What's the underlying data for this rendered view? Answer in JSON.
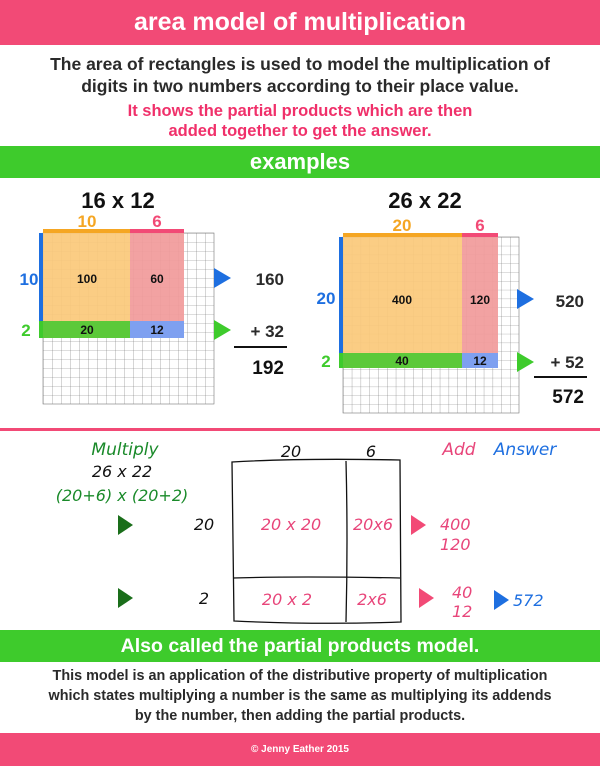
{
  "title": "area model of multiplication",
  "intro": {
    "line1": "The area of rectangles is used to model the multiplication of",
    "line2": "digits in two numbers according to their place value.",
    "pink1": "It shows the partial products which are then",
    "pink2": "added together to get the answer."
  },
  "examples_banner": "examples",
  "example1": {
    "title": "16 x 12",
    "top_tens": "10",
    "top_ones": "6",
    "side_tens": "10",
    "side_ones": "2",
    "cell_tt": "100",
    "cell_to": "60",
    "cell_ot": "20",
    "cell_oo": "12",
    "sum1": "160",
    "sum2": "+ 32",
    "total": "192"
  },
  "example2": {
    "title": "26 x 22",
    "top_tens": "20",
    "top_ones": "6",
    "side_tens": "20",
    "side_ones": "2",
    "cell_tt": "400",
    "cell_to": "120",
    "cell_ot": "40",
    "cell_oo": "12",
    "sum1": "520",
    "sum2": "+ 52",
    "total": "572"
  },
  "worked": {
    "multiply_label": "Multiply",
    "problem": "26 x 22",
    "expanded": "(20+6) x (20+2)",
    "col1": "20",
    "col2": "6",
    "row1": "20",
    "row2": "2",
    "c11": "20 x 20",
    "c12": "20x6",
    "c21": "20 x 2",
    "c22": "2x6",
    "add_label": "Add",
    "answer_label": "Answer",
    "add1a": "400",
    "add1b": "120",
    "add2a": "40",
    "add2b": "12",
    "answer": "572"
  },
  "also_banner": "Also called the partial products model.",
  "footer_text": {
    "l1": "This model is an application of the distributive property of multiplication",
    "l2": "which states multiplying a number is the same as multiplying its addends",
    "l3": "by the number, then adding the partial products."
  },
  "copyright": "© Jenny Eather 2015",
  "colors": {
    "pink": "#f24a76",
    "green": "#3ecb2c",
    "orange": "#f5a623",
    "blue": "#1e6fe0",
    "tens_fill": "#fbc97a",
    "ones_fill": "#f19a9a",
    "bottom_fill": "#5cc93a",
    "corner_fill": "#7ea0f0"
  }
}
